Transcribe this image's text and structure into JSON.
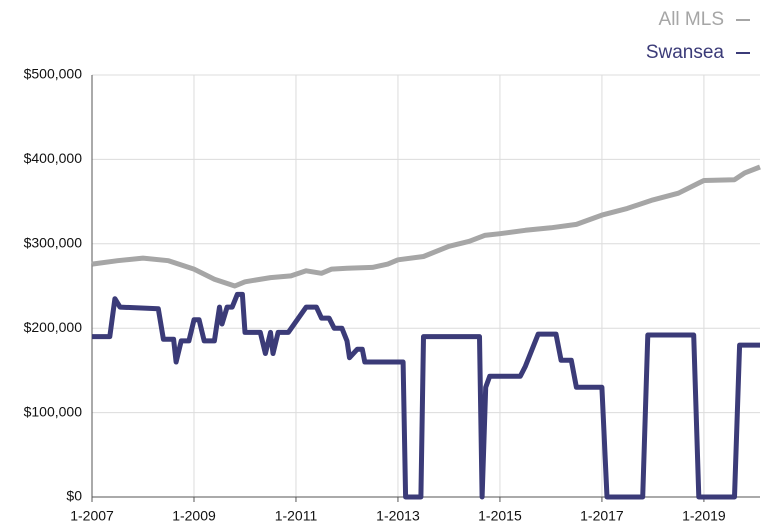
{
  "chart_data": {
    "type": "line",
    "xlim": [
      2007,
      2020.1
    ],
    "xticks": [
      {
        "value": 2007,
        "label": "1-2007"
      },
      {
        "value": 2009,
        "label": "1-2009"
      },
      {
        "value": 2011,
        "label": "1-2011"
      },
      {
        "value": 2013,
        "label": "1-2013"
      },
      {
        "value": 2015,
        "label": "1-2015"
      },
      {
        "value": 2017,
        "label": "1-2017"
      },
      {
        "value": 2019,
        "label": "1-2019"
      }
    ],
    "ylim": [
      0,
      500000
    ],
    "yticks": [
      {
        "value": 0,
        "label": "$0"
      },
      {
        "value": 100000,
        "label": "$100,000"
      },
      {
        "value": 200000,
        "label": "$200,000"
      },
      {
        "value": 300000,
        "label": "$300,000"
      },
      {
        "value": 400000,
        "label": "$400,000"
      },
      {
        "value": 500000,
        "label": "$500,000"
      }
    ],
    "grid": true,
    "legend": "top-right",
    "series": [
      {
        "name": "All MLS",
        "color": "#a6a6a6",
        "x": [
          2007,
          2007.5,
          2008,
          2008.5,
          2009,
          2009.4,
          2009.8,
          2010,
          2010.5,
          2010.9,
          2011.2,
          2011.5,
          2011.7,
          2012,
          2012.5,
          2012.8,
          2013,
          2013.5,
          2014,
          2014.4,
          2014.7,
          2015,
          2015.5,
          2016,
          2016.5,
          2017,
          2017.5,
          2018,
          2018.5,
          2018.9,
          2019,
          2019.6,
          2019.8,
          2020.1
        ],
        "values": [
          276000,
          280000,
          283000,
          280000,
          270000,
          258000,
          250000,
          255000,
          260000,
          262000,
          268000,
          265000,
          270000,
          271000,
          272000,
          276000,
          281000,
          285000,
          297000,
          303000,
          310000,
          312000,
          316000,
          319000,
          323000,
          334000,
          342000,
          352000,
          360000,
          372000,
          375000,
          376000,
          384000,
          391000
        ]
      },
      {
        "name": "Swansea",
        "color": "#3b3b78",
        "x": [
          2007,
          2007.35,
          2007.45,
          2007.55,
          2008.3,
          2008.4,
          2008.6,
          2008.65,
          2008.75,
          2008.9,
          2009,
          2009.1,
          2009.2,
          2009.4,
          2009.5,
          2009.55,
          2009.65,
          2009.75,
          2009.85,
          2009.95,
          2010,
          2010.3,
          2010.4,
          2010.5,
          2010.55,
          2010.65,
          2010.85,
          2011.2,
          2011.4,
          2011.5,
          2011.65,
          2011.75,
          2011.9,
          2012,
          2012.05,
          2012.2,
          2012.3,
          2012.35,
          2013.1,
          2013.15,
          2013.45,
          2013.5,
          2014.6,
          2014.65,
          2014.72,
          2014.8,
          2015.4,
          2015.5,
          2015.75,
          2016.1,
          2016.2,
          2016.4,
          2016.5,
          2017,
          2017.1,
          2017.8,
          2017.9,
          2018.8,
          2018.9,
          2019.6,
          2019.7,
          2020.1
        ],
        "values": [
          190000,
          190000,
          235000,
          225000,
          223000,
          187000,
          187000,
          160000,
          185000,
          185000,
          210000,
          210000,
          185000,
          185000,
          225000,
          205000,
          225000,
          225000,
          240000,
          240000,
          195000,
          195000,
          170000,
          195000,
          170000,
          195000,
          195000,
          225000,
          225000,
          212000,
          212000,
          200000,
          200000,
          185000,
          165000,
          175000,
          175000,
          160000,
          160000,
          0,
          0,
          190000,
          190000,
          0,
          130000,
          143000,
          143000,
          155000,
          193000,
          193000,
          162000,
          162000,
          130000,
          130000,
          0,
          0,
          192000,
          192000,
          0,
          0,
          180000,
          180000
        ]
      }
    ]
  }
}
